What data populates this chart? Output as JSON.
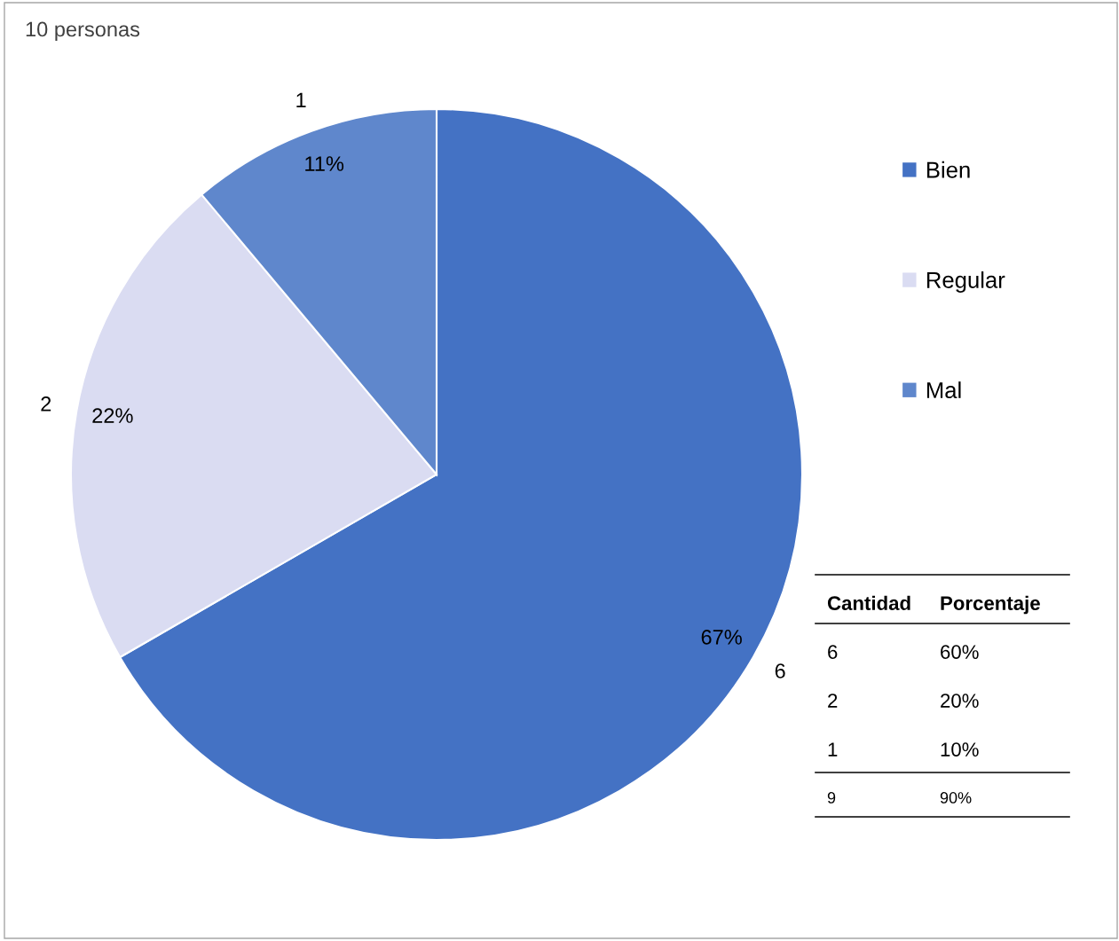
{
  "chart_data": {
    "type": "pie",
    "title": "10 personas",
    "categories": [
      "Bien",
      "Regular",
      "Mal"
    ],
    "values": [
      6,
      2,
      1
    ],
    "colors": [
      "#4472c4",
      "#dadcf2",
      "#5f87cc"
    ],
    "data_labels": true,
    "legend": "right",
    "annotations": [
      {
        "text": "67%",
        "x": "Bien"
      },
      {
        "text": "22%",
        "x": "Regular"
      },
      {
        "text": "11%",
        "x": "Mal"
      },
      "Cantidad",
      "Porcentaje",
      "6",
      "60%",
      "2",
      "20%",
      "1",
      "10%",
      "9",
      "90%"
    ]
  }
}
